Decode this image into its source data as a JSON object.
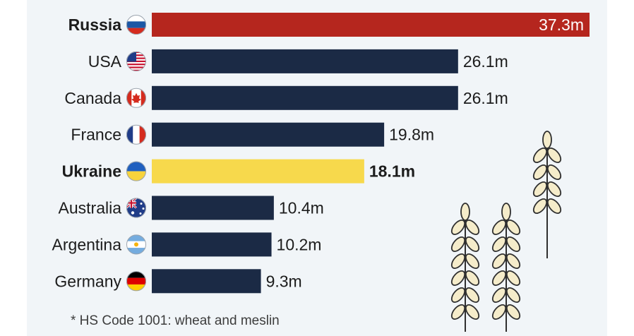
{
  "chart_data": {
    "type": "bar",
    "orientation": "horizontal",
    "categories": [
      "Russia",
      "USA",
      "Canada",
      "France",
      "Ukraine",
      "Australia",
      "Argentina",
      "Germany"
    ],
    "values": [
      37.3,
      26.1,
      26.1,
      19.8,
      18.1,
      10.4,
      10.2,
      9.3
    ],
    "value_labels": [
      "37.3m",
      "26.1m",
      "26.1m",
      "19.8m",
      "18.1m",
      "10.4m",
      "10.2m",
      "9.3m"
    ],
    "highlighted": [
      "Russia",
      "Ukraine"
    ],
    "xlim": [
      0,
      37.3
    ],
    "grid": false,
    "legend": "none"
  },
  "colors": {
    "default_bar": "#1b2a45",
    "russia_bar": "#b5261e",
    "ukraine_bar": "#f7d94c",
    "panel_background": "#f1f5f8",
    "wheat_fill": "#f5ecca",
    "wheat_stroke": "#2f2f2f"
  },
  "icons": [
    "flag-russia-icon",
    "flag-usa-icon",
    "flag-canada-icon",
    "flag-france-icon",
    "flag-ukraine-icon",
    "flag-australia-icon",
    "flag-argentina-icon",
    "flag-germany-icon",
    "wheat-illustration"
  ],
  "footnote": "* HS Code 1001: wheat and meslin"
}
